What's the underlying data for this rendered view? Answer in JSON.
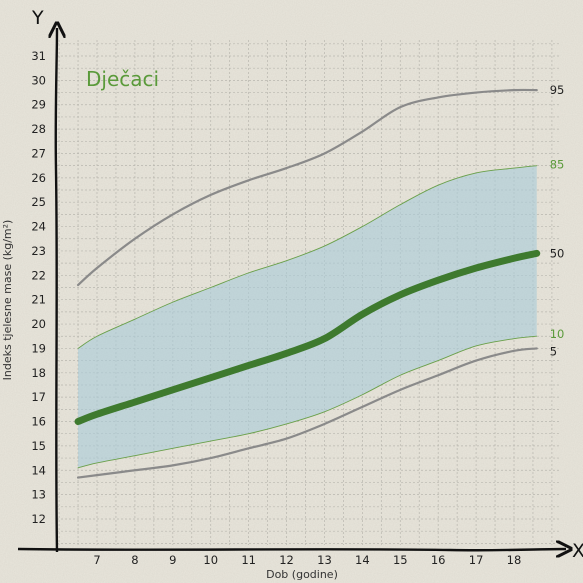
{
  "chart_data": {
    "type": "line",
    "title": "Dječaci",
    "xlabel": "Dob (godine)",
    "ylabel": "Indeks tjelesne mase (kg/m²)",
    "x_axis_letter": "X",
    "y_axis_letter": "Y",
    "xlim": [
      6,
      18.7
    ],
    "ylim": [
      11,
      32
    ],
    "x_ticks": [
      7,
      8,
      9,
      10,
      11,
      12,
      13,
      14,
      15,
      16,
      17,
      18
    ],
    "y_ticks": [
      12,
      13,
      14,
      15,
      16,
      17,
      18,
      19,
      20,
      21,
      22,
      23,
      24,
      25,
      26,
      27,
      28,
      29,
      30,
      31
    ],
    "grid": true,
    "shaded_band": {
      "lower": "10",
      "upper": "85",
      "color": "#a9cbd9"
    },
    "series": [
      {
        "name": "95",
        "color": "#8a8a8a",
        "x": [
          6.5,
          7,
          8,
          9,
          10,
          11,
          12,
          13,
          14,
          15,
          16,
          17,
          18,
          18.6
        ],
        "y": [
          21.6,
          22.3,
          23.5,
          24.5,
          25.3,
          25.9,
          26.4,
          27.0,
          27.9,
          28.9,
          29.3,
          29.5,
          29.6,
          29.6
        ]
      },
      {
        "name": "85",
        "color": "#6aa04a",
        "x": [
          6.5,
          7,
          8,
          9,
          10,
          11,
          12,
          13,
          14,
          15,
          16,
          17,
          18,
          18.6
        ],
        "y": [
          19.0,
          19.5,
          20.2,
          20.9,
          21.5,
          22.1,
          22.6,
          23.2,
          24.0,
          24.9,
          25.7,
          26.2,
          26.4,
          26.5
        ]
      },
      {
        "name": "50",
        "color": "#3e7a2e",
        "x": [
          6.5,
          7,
          8,
          9,
          10,
          11,
          12,
          13,
          14,
          15,
          16,
          17,
          18,
          18.6
        ],
        "y": [
          16.0,
          16.3,
          16.8,
          17.3,
          17.8,
          18.3,
          18.8,
          19.4,
          20.4,
          21.2,
          21.8,
          22.3,
          22.7,
          22.9
        ]
      },
      {
        "name": "10",
        "color": "#6aa04a",
        "x": [
          6.5,
          7,
          8,
          9,
          10,
          11,
          12,
          13,
          14,
          15,
          16,
          17,
          18,
          18.6
        ],
        "y": [
          14.1,
          14.3,
          14.6,
          14.9,
          15.2,
          15.5,
          15.9,
          16.4,
          17.1,
          17.9,
          18.5,
          19.1,
          19.4,
          19.5
        ]
      },
      {
        "name": "5",
        "color": "#8a8a8a",
        "x": [
          6.5,
          7,
          8,
          9,
          10,
          11,
          12,
          13,
          14,
          15,
          16,
          17,
          18,
          18.6
        ],
        "y": [
          13.7,
          13.8,
          14.0,
          14.2,
          14.5,
          14.9,
          15.3,
          15.9,
          16.6,
          17.3,
          17.9,
          18.5,
          18.9,
          19.0
        ]
      }
    ]
  }
}
